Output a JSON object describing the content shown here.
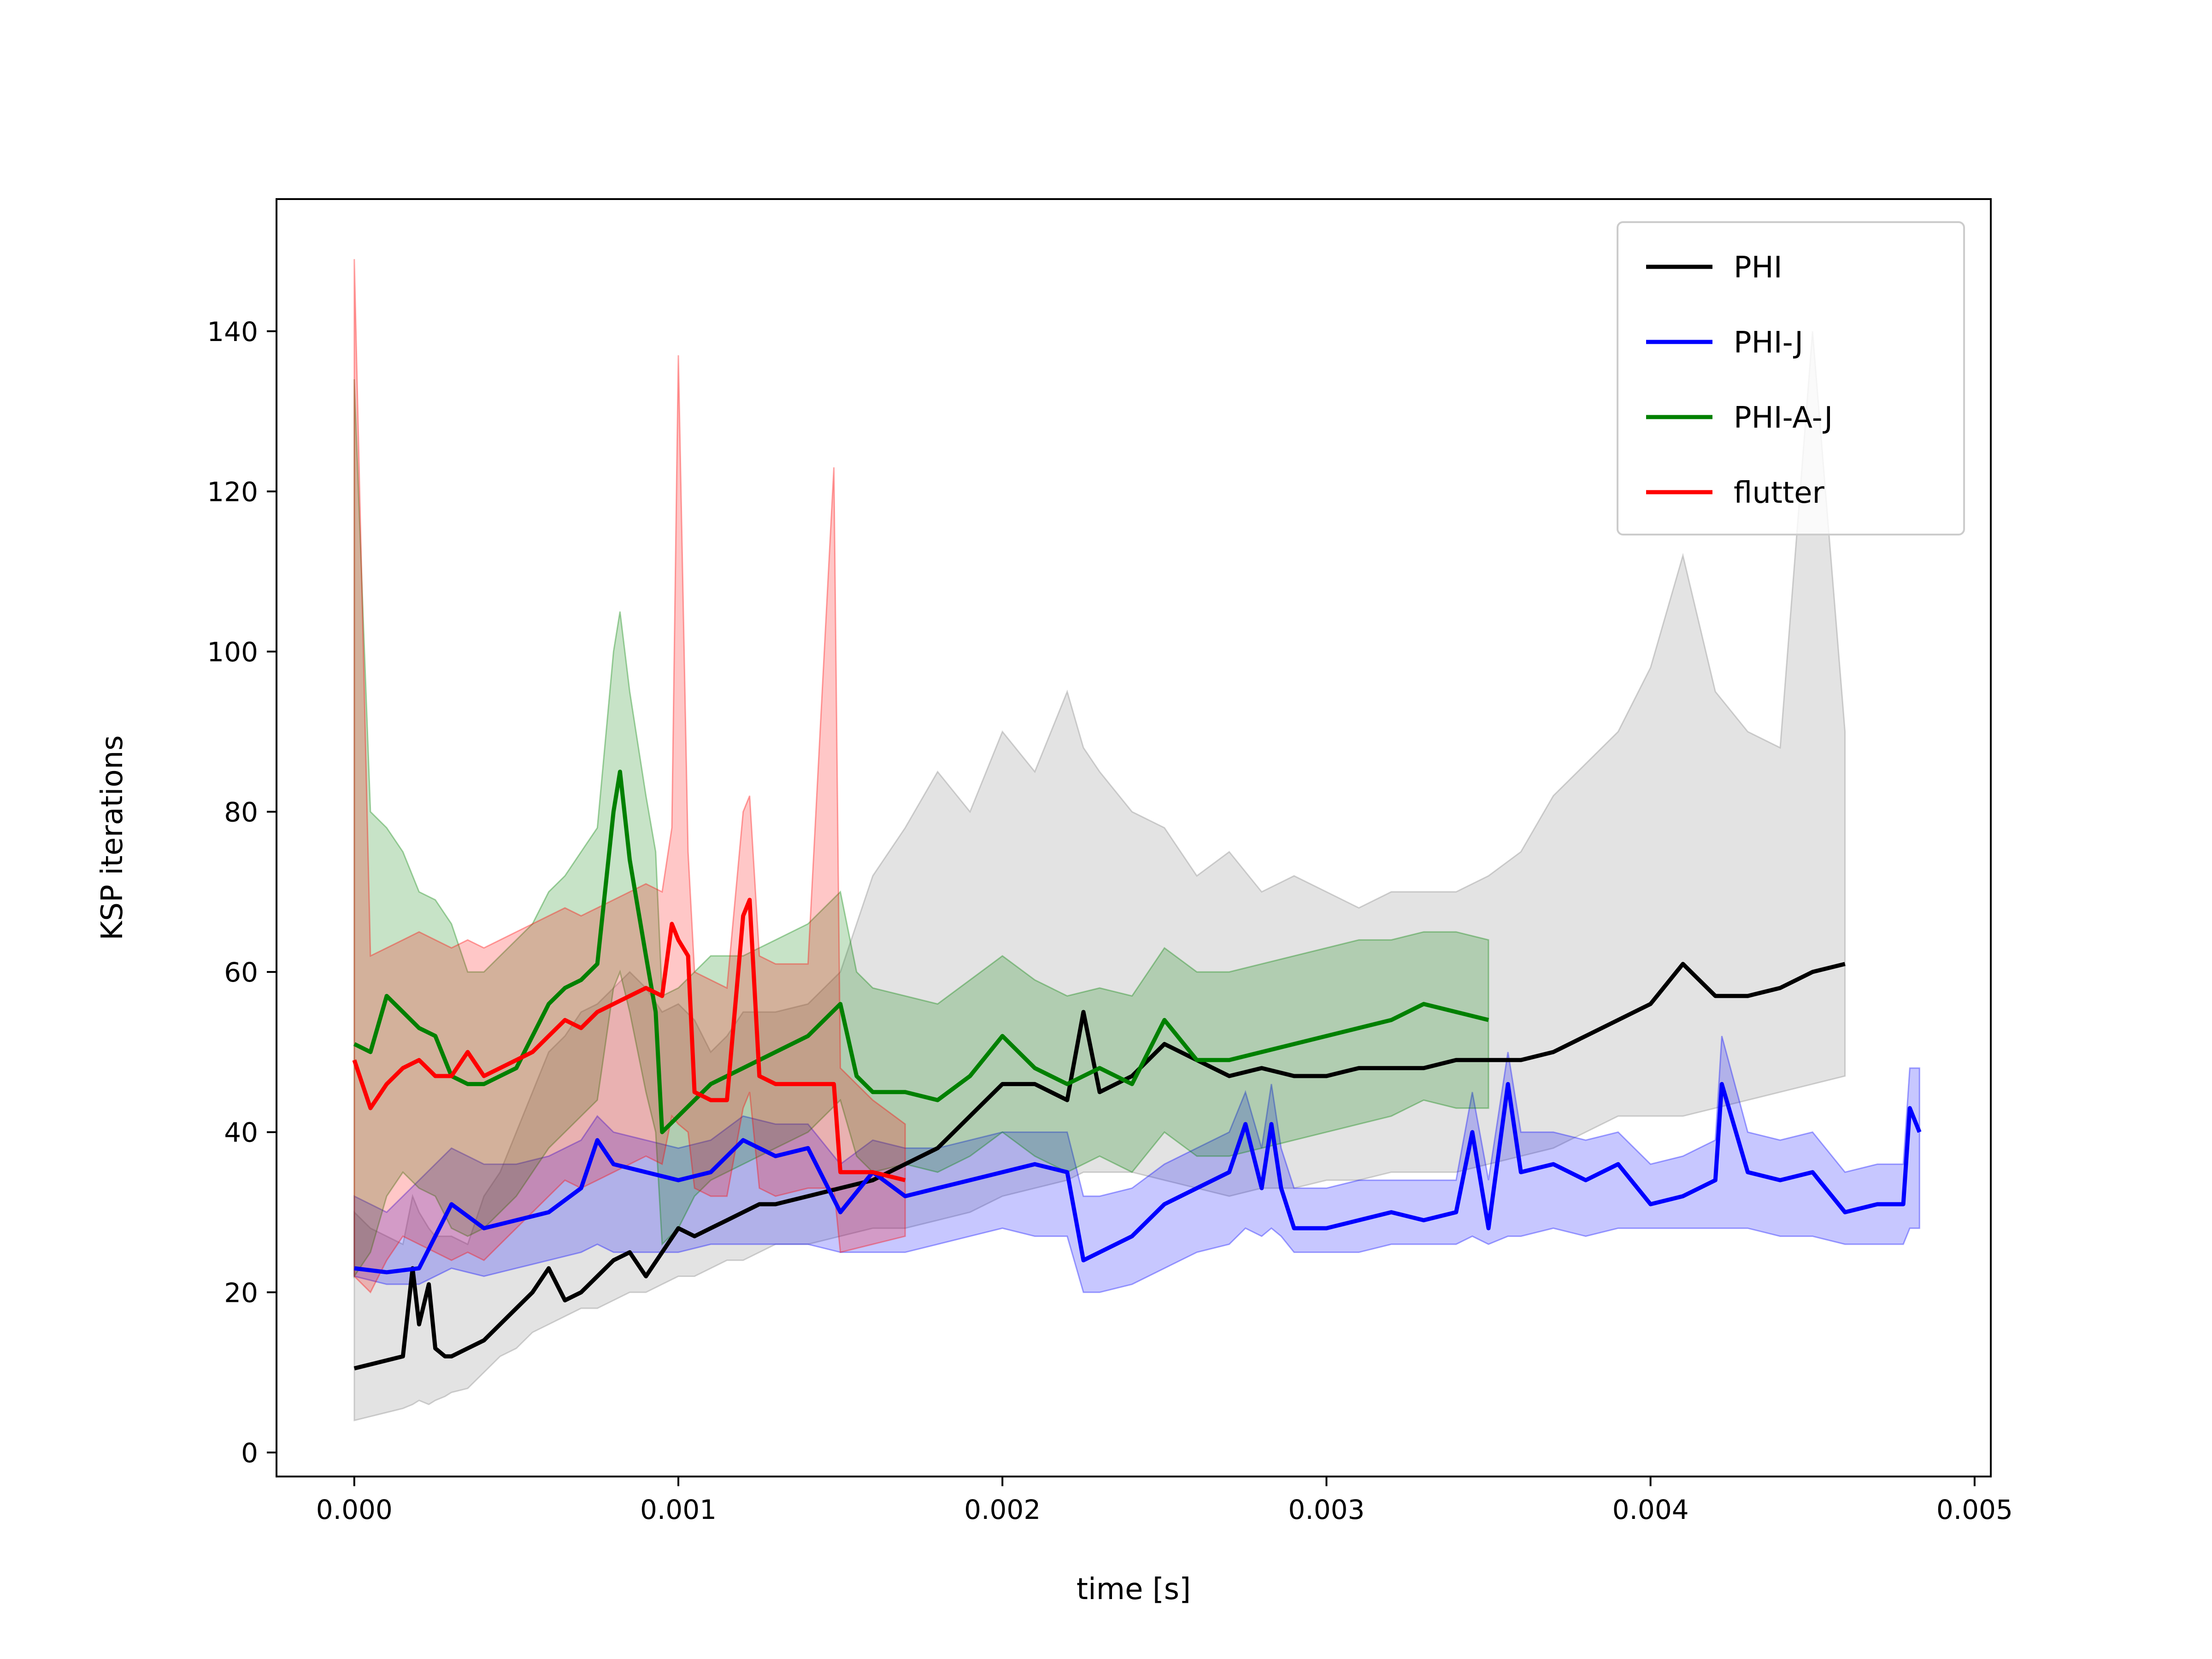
{
  "chart_data": {
    "type": "line",
    "xlabel": "time [s]",
    "ylabel": "KSP iterations",
    "xlim": [
      -0.00024,
      0.00505
    ],
    "ylim": [
      -3.0,
      156.5
    ],
    "x_ticks": [
      {
        "value": 0.0,
        "label": "0.000"
      },
      {
        "value": 0.001,
        "label": "0.001"
      },
      {
        "value": 0.002,
        "label": "0.002"
      },
      {
        "value": 0.003,
        "label": "0.003"
      },
      {
        "value": 0.004,
        "label": "0.004"
      },
      {
        "value": 0.005,
        "label": "0.005"
      }
    ],
    "y_ticks": [
      {
        "value": 0,
        "label": "0"
      },
      {
        "value": 20,
        "label": "20"
      },
      {
        "value": 40,
        "label": "40"
      },
      {
        "value": 60,
        "label": "60"
      },
      {
        "value": 80,
        "label": "80"
      },
      {
        "value": 100,
        "label": "100"
      },
      {
        "value": 120,
        "label": "120"
      },
      {
        "value": 140,
        "label": "140"
      }
    ],
    "grid": false,
    "legend_position": "top-right",
    "series": [
      {
        "name": "PHI",
        "color": "#000000",
        "band_color": "#808080",
        "x": [
          0.0,
          5e-05,
          0.0001,
          0.00015,
          0.00018,
          0.0002,
          0.00023,
          0.00025,
          0.00028,
          0.0003,
          0.00035,
          0.0004,
          0.00045,
          0.0005,
          0.00055,
          0.0006,
          0.00065,
          0.0007,
          0.00075,
          0.0008,
          0.00085,
          0.0009,
          0.00095,
          0.001,
          0.00105,
          0.0011,
          0.00115,
          0.0012,
          0.00125,
          0.0013,
          0.0014,
          0.0015,
          0.0016,
          0.0017,
          0.0018,
          0.0019,
          0.002,
          0.0021,
          0.0022,
          0.00225,
          0.0023,
          0.0024,
          0.0025,
          0.0026,
          0.0027,
          0.0028,
          0.0029,
          0.003,
          0.0031,
          0.0032,
          0.0033,
          0.0034,
          0.0035,
          0.0036,
          0.0037,
          0.0038,
          0.0039,
          0.004,
          0.0041,
          0.0042,
          0.0043,
          0.0044,
          0.0045,
          0.0046
        ],
        "y": [
          10.5,
          11,
          11.5,
          12,
          23,
          16,
          21,
          13,
          12,
          12,
          13,
          14,
          16,
          18,
          20,
          23,
          19,
          20,
          22,
          24,
          25,
          22,
          25,
          28,
          27,
          28,
          29,
          30,
          31,
          31,
          32,
          33,
          34,
          36,
          38,
          42,
          46,
          46,
          44,
          55,
          45,
          47,
          51,
          49,
          47,
          48,
          47,
          47,
          48,
          48,
          48,
          49,
          49,
          49,
          50,
          52,
          54,
          56,
          61,
          57,
          57,
          58,
          60,
          61
        ],
        "lower": [
          4,
          4.5,
          5,
          5.5,
          6,
          6.5,
          6,
          6.5,
          7,
          7.5,
          8,
          10,
          12,
          13,
          15,
          16,
          17,
          18,
          18,
          19,
          20,
          20,
          21,
          22,
          22,
          23,
          24,
          24,
          25,
          26,
          26,
          27,
          28,
          28,
          29,
          30,
          32,
          33,
          34,
          35,
          35,
          35,
          34,
          33,
          32,
          33,
          33,
          34,
          34,
          35,
          35,
          35,
          36,
          37,
          38,
          40,
          42,
          42,
          42,
          43,
          44,
          45,
          46,
          47
        ],
        "upper": [
          30,
          28,
          27,
          26,
          32,
          30,
          28,
          27,
          27,
          27,
          26,
          32,
          35,
          40,
          45,
          50,
          52,
          55,
          56,
          58,
          60,
          58,
          55,
          56,
          54,
          50,
          52,
          55,
          55,
          55,
          56,
          60,
          72,
          78,
          85,
          80,
          90,
          85,
          95,
          88,
          85,
          80,
          78,
          72,
          75,
          70,
          72,
          70,
          68,
          70,
          70,
          70,
          72,
          75,
          82,
          86,
          90,
          98,
          112,
          95,
          90,
          88,
          140,
          90
        ]
      },
      {
        "name": "PHI-J",
        "color": "#0000ff",
        "band_color": "#0000ff",
        "x": [
          0.0,
          0.0001,
          0.0002,
          0.0003,
          0.0004,
          0.0005,
          0.0006,
          0.0007,
          0.00075,
          0.0008,
          0.0009,
          0.001,
          0.0011,
          0.0012,
          0.0013,
          0.0014,
          0.0015,
          0.0016,
          0.0017,
          0.0018,
          0.0019,
          0.002,
          0.0021,
          0.0022,
          0.00225,
          0.0023,
          0.0024,
          0.0025,
          0.0026,
          0.0027,
          0.00275,
          0.0028,
          0.00283,
          0.00286,
          0.0029,
          0.003,
          0.0031,
          0.0032,
          0.0033,
          0.0034,
          0.00345,
          0.0035,
          0.00356,
          0.0036,
          0.0037,
          0.0038,
          0.0039,
          0.004,
          0.0041,
          0.0042,
          0.00422,
          0.0043,
          0.0044,
          0.0045,
          0.0046,
          0.0047,
          0.00478,
          0.0048,
          0.00483
        ],
        "y": [
          23,
          22.5,
          23,
          31,
          28,
          29,
          30,
          33,
          39,
          36,
          35,
          34,
          35,
          39,
          37,
          38,
          30,
          35,
          32,
          33,
          34,
          35,
          36,
          35,
          24,
          25,
          27,
          31,
          33,
          35,
          41,
          33,
          41,
          33,
          28,
          28,
          29,
          30,
          29,
          30,
          40,
          28,
          46,
          35,
          36,
          34,
          36,
          31,
          32,
          34,
          46,
          35,
          34,
          35,
          30,
          31,
          31,
          43,
          40
        ],
        "lower": [
          22,
          21,
          21,
          23,
          22,
          23,
          24,
          25,
          26,
          25,
          25,
          25,
          26,
          26,
          26,
          26,
          25,
          25,
          25,
          26,
          27,
          28,
          27,
          27,
          20,
          20,
          21,
          23,
          25,
          26,
          28,
          27,
          28,
          27,
          25,
          25,
          25,
          26,
          26,
          26,
          27,
          26,
          27,
          27,
          28,
          27,
          28,
          28,
          28,
          28,
          28,
          28,
          27,
          27,
          26,
          26,
          26,
          28,
          28
        ],
        "upper": [
          32,
          30,
          34,
          38,
          36,
          36,
          37,
          39,
          42,
          40,
          39,
          38,
          39,
          42,
          41,
          41,
          36,
          39,
          38,
          38,
          39,
          40,
          40,
          40,
          32,
          32,
          33,
          36,
          38,
          40,
          45,
          38,
          46,
          38,
          33,
          33,
          34,
          34,
          34,
          34,
          45,
          34,
          50,
          40,
          40,
          39,
          40,
          36,
          37,
          39,
          52,
          40,
          39,
          40,
          35,
          36,
          36,
          48,
          48
        ]
      },
      {
        "name": "PHI-A-J",
        "color": "#008000",
        "band_color": "#008000",
        "x": [
          0.0,
          5e-05,
          0.0001,
          0.00015,
          0.0002,
          0.00025,
          0.0003,
          0.00035,
          0.0004,
          0.00045,
          0.0005,
          0.00055,
          0.0006,
          0.00065,
          0.0007,
          0.00075,
          0.0008,
          0.00082,
          0.00085,
          0.0009,
          0.00093,
          0.00095,
          0.001,
          0.00105,
          0.0011,
          0.0012,
          0.0013,
          0.0014,
          0.0015,
          0.00155,
          0.0016,
          0.0017,
          0.0018,
          0.0019,
          0.002,
          0.0021,
          0.0022,
          0.0023,
          0.0024,
          0.0025,
          0.0026,
          0.0027,
          0.0028,
          0.0029,
          0.003,
          0.0031,
          0.0032,
          0.0033,
          0.0034,
          0.0035
        ],
        "y": [
          51,
          50,
          57,
          55,
          53,
          52,
          47,
          46,
          46,
          47,
          48,
          52,
          56,
          58,
          59,
          61,
          80,
          85,
          74,
          62,
          55,
          40,
          42,
          44,
          46,
          48,
          50,
          52,
          56,
          47,
          45,
          45,
          44,
          47,
          52,
          48,
          46,
          48,
          46,
          54,
          49,
          49,
          50,
          51,
          52,
          53,
          54,
          56,
          55,
          54
        ],
        "lower": [
          22,
          25,
          32,
          35,
          33,
          32,
          28,
          27,
          28,
          30,
          32,
          35,
          38,
          40,
          42,
          44,
          58,
          60,
          55,
          45,
          40,
          26,
          28,
          32,
          34,
          36,
          38,
          40,
          44,
          37,
          35,
          36,
          35,
          37,
          40,
          37,
          35,
          37,
          35,
          40,
          37,
          37,
          38,
          39,
          40,
          41,
          42,
          44,
          43,
          43
        ],
        "upper": [
          134,
          80,
          78,
          75,
          70,
          69,
          66,
          60,
          60,
          62,
          64,
          66,
          70,
          72,
          75,
          78,
          100,
          105,
          95,
          82,
          75,
          57,
          58,
          60,
          62,
          62,
          64,
          66,
          70,
          60,
          58,
          57,
          56,
          59,
          62,
          59,
          57,
          58,
          57,
          63,
          60,
          60,
          61,
          62,
          63,
          64,
          64,
          65,
          65,
          64
        ]
      },
      {
        "name": "flutter",
        "color": "#ff0000",
        "band_color": "#ff0000",
        "x": [
          0.0,
          5e-05,
          0.0001,
          0.00015,
          0.0002,
          0.00025,
          0.0003,
          0.00035,
          0.0004,
          0.00045,
          0.0005,
          0.00055,
          0.0006,
          0.00065,
          0.0007,
          0.00075,
          0.0008,
          0.00085,
          0.0009,
          0.00095,
          0.00098,
          0.001,
          0.00103,
          0.00105,
          0.0011,
          0.00115,
          0.0012,
          0.00122,
          0.00125,
          0.0013,
          0.0014,
          0.00148,
          0.0015,
          0.0016,
          0.0017
        ],
        "y": [
          49,
          43,
          46,
          48,
          49,
          47,
          47,
          50,
          47,
          48,
          49,
          50,
          52,
          54,
          53,
          55,
          56,
          57,
          58,
          57,
          66,
          64,
          62,
          45,
          44,
          44,
          67,
          69,
          47,
          46,
          46,
          46,
          35,
          35,
          34
        ],
        "lower": [
          22,
          20,
          24,
          27,
          26,
          25,
          24,
          25,
          24,
          26,
          28,
          30,
          32,
          34,
          33,
          34,
          35,
          36,
          37,
          36,
          42,
          41,
          40,
          33,
          32,
          32,
          43,
          45,
          33,
          32,
          33,
          33,
          25,
          26,
          27
        ],
        "upper": [
          149,
          62,
          63,
          64,
          65,
          64,
          63,
          64,
          63,
          64,
          65,
          66,
          67,
          68,
          67,
          68,
          69,
          70,
          71,
          70,
          78,
          137,
          75,
          60,
          59,
          58,
          80,
          82,
          62,
          61,
          61,
          123,
          48,
          44,
          41
        ]
      }
    ]
  }
}
